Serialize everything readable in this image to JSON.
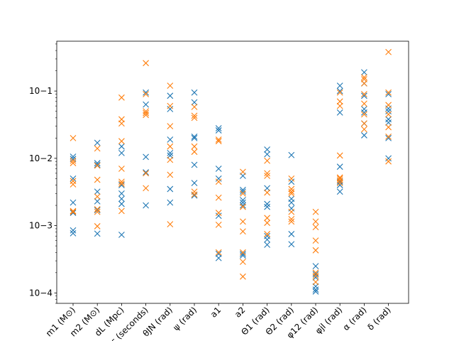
{
  "chart_data": {
    "type": "scatter",
    "title": "",
    "xlabel": "",
    "ylabel": "",
    "yscale": "log",
    "ylim": [
      7e-05,
      0.55
    ],
    "grid": false,
    "marker": "x",
    "categories": [
      "m1 (M⊙)",
      "m2 (M⊙)",
      "dL (Mpc)",
      "tc (seconds)",
      "θJN (rad)",
      "ψ (rad)",
      "a1",
      "a2",
      "Θ1 (rad)",
      "Θ2 (rad)",
      "φ12 (rad)",
      "φjl (rad)",
      "α (rad)",
      "δ (rad)"
    ],
    "yticks": [
      {
        "value": 0.0001,
        "label": "10−4"
      },
      {
        "value": 0.001,
        "label": "10−3"
      },
      {
        "value": 0.01,
        "label": "10−2"
      },
      {
        "value": 0.1,
        "label": "10−1"
      }
    ],
    "series": [
      {
        "color": "#1f77b4",
        "points": [
          [
            0,
            0.0106
          ],
          [
            0,
            0.0098
          ],
          [
            0,
            0.005
          ],
          [
            0,
            0.0022
          ],
          [
            0,
            0.00155
          ],
          [
            0,
            0.00085
          ],
          [
            0,
            0.00077
          ],
          [
            1,
            0.017
          ],
          [
            1,
            0.0085
          ],
          [
            1,
            0.008
          ],
          [
            1,
            0.0032
          ],
          [
            1,
            0.0023
          ],
          [
            1,
            0.0017
          ],
          [
            1,
            0.00076
          ],
          [
            2,
            0.015
          ],
          [
            2,
            0.012
          ],
          [
            2,
            0.004
          ],
          [
            2,
            0.003
          ],
          [
            2,
            0.0025
          ],
          [
            2,
            0.0021
          ],
          [
            2,
            0.00073
          ],
          [
            3,
            0.095
          ],
          [
            3,
            0.063
          ],
          [
            3,
            0.0105
          ],
          [
            3,
            0.0062
          ],
          [
            3,
            0.002
          ],
          [
            4,
            0.085
          ],
          [
            4,
            0.054
          ],
          [
            4,
            0.019
          ],
          [
            4,
            0.012
          ],
          [
            4,
            0.011
          ],
          [
            4,
            0.0035
          ],
          [
            4,
            0.0022
          ],
          [
            5,
            0.095
          ],
          [
            5,
            0.068
          ],
          [
            5,
            0.021
          ],
          [
            5,
            0.02
          ],
          [
            5,
            0.008
          ],
          [
            5,
            0.0043
          ],
          [
            5,
            0.0028
          ],
          [
            6,
            0.028
          ],
          [
            6,
            0.026
          ],
          [
            6,
            0.007
          ],
          [
            6,
            0.005
          ],
          [
            6,
            0.0014
          ],
          [
            6,
            0.00038
          ],
          [
            6,
            0.00033
          ],
          [
            7,
            0.0055
          ],
          [
            7,
            0.0034
          ],
          [
            7,
            0.0032
          ],
          [
            7,
            0.0024
          ],
          [
            7,
            0.0022
          ],
          [
            7,
            0.002
          ],
          [
            7,
            0.00038
          ],
          [
            7,
            0.00036
          ],
          [
            8,
            0.0135
          ],
          [
            8,
            0.0115
          ],
          [
            8,
            0.0036
          ],
          [
            8,
            0.0021
          ],
          [
            8,
            0.0019
          ],
          [
            8,
            0.0007
          ],
          [
            8,
            0.00062
          ],
          [
            8,
            0.00052
          ],
          [
            9,
            0.0112
          ],
          [
            9,
            0.0045
          ],
          [
            9,
            0.0025
          ],
          [
            9,
            0.0022
          ],
          [
            9,
            0.0018
          ],
          [
            9,
            0.00075
          ],
          [
            9,
            0.00053
          ],
          [
            10,
            0.00025
          ],
          [
            10,
            0.00019
          ],
          [
            10,
            0.00017
          ],
          [
            10,
            0.000125
          ],
          [
            10,
            0.000112
          ],
          [
            10,
            0.000105
          ],
          [
            11,
            0.12
          ],
          [
            11,
            0.1
          ],
          [
            11,
            0.048
          ],
          [
            11,
            0.0075
          ],
          [
            11,
            0.0045
          ],
          [
            11,
            0.004
          ],
          [
            11,
            0.0032
          ],
          [
            12,
            0.19
          ],
          [
            12,
            0.13
          ],
          [
            12,
            0.085
          ],
          [
            12,
            0.054
          ],
          [
            12,
            0.048
          ],
          [
            12,
            0.033
          ],
          [
            12,
            0.022
          ],
          [
            13,
            0.09
          ],
          [
            13,
            0.055
          ],
          [
            13,
            0.05
          ],
          [
            13,
            0.038
          ],
          [
            13,
            0.034
          ],
          [
            13,
            0.02
          ],
          [
            13,
            0.01
          ]
        ]
      },
      {
        "color": "#ff7f0e",
        "points": [
          [
            0,
            0.02
          ],
          [
            0,
            0.0092
          ],
          [
            0,
            0.0085
          ],
          [
            0,
            0.0046
          ],
          [
            0,
            0.0041
          ],
          [
            0,
            0.00165
          ],
          [
            0,
            0.0016
          ],
          [
            1,
            0.014
          ],
          [
            1,
            0.0078
          ],
          [
            1,
            0.0048
          ],
          [
            1,
            0.0027
          ],
          [
            1,
            0.00175
          ],
          [
            1,
            0.0016
          ],
          [
            1,
            0.00098
          ],
          [
            2,
            0.08
          ],
          [
            2,
            0.038
          ],
          [
            2,
            0.033
          ],
          [
            2,
            0.018
          ],
          [
            2,
            0.007
          ],
          [
            2,
            0.0045
          ],
          [
            2,
            0.0042
          ],
          [
            2,
            0.00165
          ],
          [
            3,
            0.26
          ],
          [
            3,
            0.09
          ],
          [
            3,
            0.05
          ],
          [
            3,
            0.047
          ],
          [
            3,
            0.044
          ],
          [
            3,
            0.006
          ],
          [
            3,
            0.0036
          ],
          [
            4,
            0.12
          ],
          [
            4,
            0.06
          ],
          [
            4,
            0.03
          ],
          [
            4,
            0.015
          ],
          [
            4,
            0.0095
          ],
          [
            4,
            0.0057
          ],
          [
            4,
            0.00105
          ],
          [
            5,
            0.058
          ],
          [
            5,
            0.043
          ],
          [
            5,
            0.04
          ],
          [
            5,
            0.015
          ],
          [
            5,
            0.0125
          ],
          [
            5,
            0.0032
          ],
          [
            5,
            0.0029
          ],
          [
            6,
            0.019
          ],
          [
            6,
            0.018
          ],
          [
            6,
            0.0045
          ],
          [
            6,
            0.0026
          ],
          [
            6,
            0.00155
          ],
          [
            6,
            0.00103
          ],
          [
            6,
            0.0004
          ],
          [
            7,
            0.0063
          ],
          [
            7,
            0.003
          ],
          [
            7,
            0.0019
          ],
          [
            7,
            0.00115
          ],
          [
            7,
            0.00082
          ],
          [
            7,
            0.0004
          ],
          [
            7,
            0.00029
          ],
          [
            7,
            0.000175
          ],
          [
            8,
            0.0092
          ],
          [
            8,
            0.006
          ],
          [
            8,
            0.0055
          ],
          [
            8,
            0.0031
          ],
          [
            8,
            0.0013
          ],
          [
            8,
            0.0011
          ],
          [
            8,
            0.00075
          ],
          [
            9,
            0.005
          ],
          [
            9,
            0.0035
          ],
          [
            9,
            0.0032
          ],
          [
            9,
            0.003
          ],
          [
            9,
            0.0016
          ],
          [
            9,
            0.00125
          ],
          [
            9,
            0.00115
          ],
          [
            10,
            0.0016
          ],
          [
            10,
            0.00115
          ],
          [
            10,
            0.00095
          ],
          [
            10,
            0.0006
          ],
          [
            10,
            0.00043
          ],
          [
            10,
            0.0002
          ],
          [
            10,
            0.00018
          ],
          [
            10,
            0.000145
          ],
          [
            11,
            0.095
          ],
          [
            11,
            0.07
          ],
          [
            11,
            0.06
          ],
          [
            11,
            0.011
          ],
          [
            11,
            0.0052
          ],
          [
            11,
            0.005
          ],
          [
            11,
            0.0047
          ],
          [
            11,
            0.0043
          ],
          [
            12,
            0.16
          ],
          [
            12,
            0.15
          ],
          [
            12,
            0.13
          ],
          [
            12,
            0.09
          ],
          [
            12,
            0.065
          ],
          [
            12,
            0.045
          ],
          [
            12,
            0.033
          ],
          [
            12,
            0.027
          ],
          [
            13,
            0.38
          ],
          [
            13,
            0.095
          ],
          [
            13,
            0.062
          ],
          [
            13,
            0.045
          ],
          [
            13,
            0.029
          ],
          [
            13,
            0.021
          ],
          [
            13,
            0.009
          ]
        ]
      }
    ]
  }
}
